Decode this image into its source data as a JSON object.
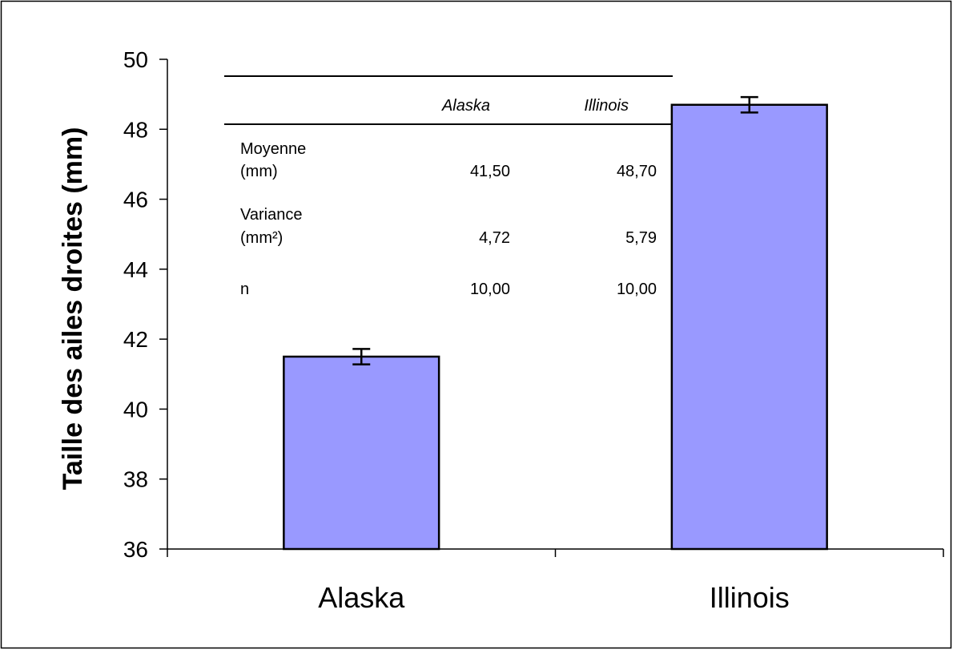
{
  "chart_data": {
    "type": "bar",
    "categories": [
      "Alaska",
      "Illinois"
    ],
    "values": [
      41.5,
      48.7
    ],
    "error": [
      0.22,
      0.22
    ],
    "xlabel": "",
    "ylabel": "Taille des ailes droites (mm)",
    "ylim": [
      36,
      50
    ],
    "yticks": [
      "36",
      "38",
      "40",
      "42",
      "44",
      "46",
      "48",
      "50"
    ],
    "grid": false,
    "colors": {
      "bar": "#9999ff",
      "bar_stroke": "#000000"
    }
  },
  "table": {
    "columns": [
      "Alaska",
      "Illinois"
    ],
    "rows": [
      {
        "label_line1": "Moyenne",
        "label_line2": "(mm)",
        "values": [
          "41,50",
          "48,70"
        ]
      },
      {
        "label_line1": "Variance",
        "label_line2": "(mm²)",
        "values": [
          "4,72",
          "5,79"
        ]
      },
      {
        "label_line1": "",
        "label_line2": "n",
        "values": [
          "10,00",
          "10,00"
        ]
      }
    ]
  }
}
